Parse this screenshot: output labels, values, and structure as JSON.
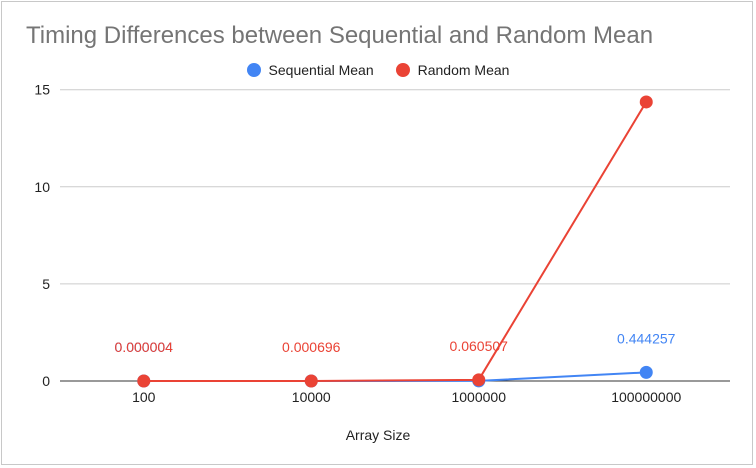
{
  "chart_data": {
    "type": "line",
    "title": "Timing Differences between Sequential and Random Mean",
    "xlabel": "Array Size",
    "ylabel": "",
    "categories": [
      "100",
      "10000",
      "1000000",
      "100000000"
    ],
    "ylim": [
      0,
      15.5
    ],
    "yticks": [
      0,
      5,
      10,
      15
    ],
    "grid": true,
    "legend_position": "top-center",
    "series": [
      {
        "name": "Sequential Mean",
        "color": "#4285f4",
        "values": [
          4e-06,
          0.0001,
          0.006,
          0.444257
        ],
        "data_labels": [
          "0.000004",
          "",
          "",
          "0.444257"
        ]
      },
      {
        "name": "Random Mean",
        "color": "#ea4335",
        "values": [
          4e-06,
          0.000696,
          0.060507,
          14.37
        ],
        "data_labels": [
          "0.000004",
          "0.000696",
          "0.060507",
          ""
        ]
      }
    ]
  }
}
